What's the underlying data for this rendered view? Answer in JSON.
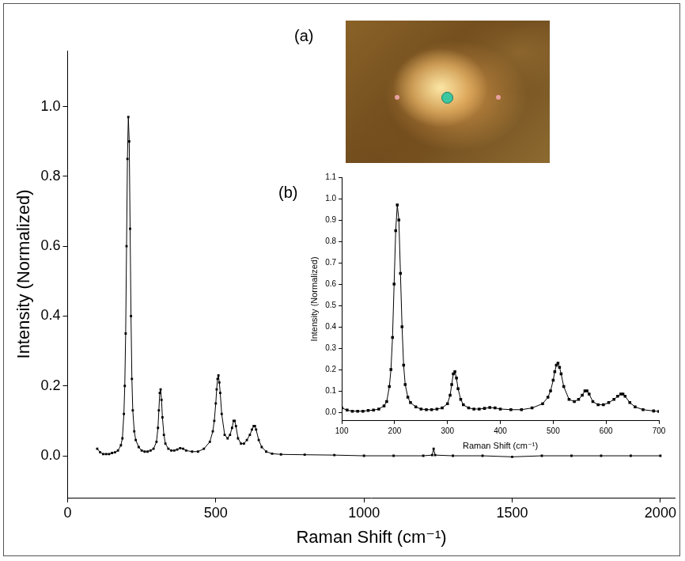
{
  "chart_data": [
    {
      "type": "line",
      "x_label": "Raman Shift (cm⁻¹)",
      "y_label": "Intensity (Normalized)",
      "annotations": [
        "(a)"
      ],
      "color": "#000000",
      "marker": "square",
      "line_style": "solid",
      "grid": false,
      "xlim": [
        0,
        2050
      ],
      "xticks": [
        0,
        500,
        1000,
        1500,
        2000
      ],
      "ylim": [
        -0.12,
        1.16
      ],
      "yticks": [
        {
          "value": 0,
          "label": "0.0"
        },
        {
          "value": 0.2,
          "label": "0.2"
        },
        {
          "value": 0.4,
          "label": "0.4"
        },
        {
          "value": 0.6,
          "label": "0.6"
        },
        {
          "value": 0.8,
          "label": "0.8"
        },
        {
          "value": 1.0,
          "label": "1.0"
        }
      ],
      "x": [
        100,
        110,
        120,
        130,
        140,
        150,
        160,
        170,
        180,
        185,
        190,
        193,
        196,
        199,
        202,
        205,
        208,
        211,
        214,
        217,
        220,
        225,
        230,
        240,
        250,
        260,
        270,
        280,
        290,
        300,
        305,
        308,
        311,
        314,
        317,
        320,
        325,
        330,
        340,
        350,
        360,
        370,
        380,
        390,
        400,
        420,
        440,
        460,
        480,
        490,
        495,
        500,
        503,
        506,
        509,
        512,
        515,
        520,
        530,
        540,
        548,
        555,
        560,
        564,
        568,
        575,
        585,
        595,
        605,
        615,
        622,
        628,
        632,
        636,
        645,
        655,
        670,
        690,
        720,
        800,
        900,
        1000,
        1100,
        1200,
        1230,
        1235,
        1240,
        1300,
        1400,
        1500,
        1600,
        1700,
        1800,
        1900,
        2000
      ],
      "values": [
        0.02,
        0.01,
        0.005,
        0.005,
        0.005,
        0.008,
        0.01,
        0.015,
        0.03,
        0.05,
        0.12,
        0.2,
        0.35,
        0.6,
        0.85,
        0.97,
        0.9,
        0.65,
        0.4,
        0.22,
        0.13,
        0.07,
        0.045,
        0.025,
        0.015,
        0.012,
        0.012,
        0.015,
        0.02,
        0.04,
        0.08,
        0.13,
        0.18,
        0.19,
        0.16,
        0.11,
        0.06,
        0.035,
        0.02,
        0.015,
        0.015,
        0.018,
        0.022,
        0.02,
        0.015,
        0.012,
        0.012,
        0.02,
        0.04,
        0.07,
        0.1,
        0.15,
        0.19,
        0.22,
        0.23,
        0.21,
        0.18,
        0.12,
        0.06,
        0.05,
        0.06,
        0.08,
        0.1,
        0.1,
        0.085,
        0.05,
        0.035,
        0.035,
        0.045,
        0.06,
        0.075,
        0.085,
        0.085,
        0.075,
        0.045,
        0.025,
        0.012,
        0.006,
        0.004,
        0.003,
        0.002,
        0.0,
        0.0,
        0.0,
        0.002,
        0.02,
        0.002,
        0.0,
        0.0,
        -0.003,
        0.0,
        0.0,
        0.0,
        0.0,
        0.0
      ]
    },
    {
      "type": "line",
      "x_label": "Raman Shift (cm⁻¹)",
      "y_label": "Intensity (Normalized)",
      "annotations": [
        "(b)"
      ],
      "color": "#000000",
      "marker": "square",
      "line_style": "solid",
      "grid": false,
      "xlim": [
        100,
        700
      ],
      "xticks": [
        100,
        200,
        300,
        400,
        500,
        600,
        700
      ],
      "ylim": [
        -0.04,
        1.1
      ],
      "yticks": [
        {
          "value": 0,
          "label": "0.0"
        },
        {
          "value": 0.1,
          "label": "0.1"
        },
        {
          "value": 0.2,
          "label": "0.2"
        },
        {
          "value": 0.3,
          "label": "0.3"
        },
        {
          "value": 0.4,
          "label": "0.4"
        },
        {
          "value": 0.5,
          "label": "0.5"
        },
        {
          "value": 0.6,
          "label": "0.6"
        },
        {
          "value": 0.7,
          "label": "0.7"
        },
        {
          "value": 0.8,
          "label": "0.8"
        },
        {
          "value": 0.9,
          "label": "0.9"
        },
        {
          "value": 1.0,
          "label": "1.0"
        },
        {
          "value": 1.1,
          "label": "1.1"
        }
      ],
      "x": [
        100,
        110,
        120,
        130,
        140,
        150,
        160,
        170,
        180,
        185,
        190,
        193,
        196,
        199,
        202,
        205,
        208,
        211,
        214,
        217,
        220,
        225,
        230,
        240,
        250,
        260,
        270,
        280,
        290,
        300,
        305,
        308,
        311,
        314,
        317,
        320,
        325,
        330,
        340,
        350,
        360,
        370,
        380,
        390,
        400,
        420,
        440,
        460,
        480,
        490,
        495,
        500,
        503,
        506,
        509,
        512,
        515,
        520,
        530,
        540,
        548,
        555,
        560,
        564,
        568,
        575,
        585,
        595,
        605,
        615,
        622,
        628,
        632,
        636,
        645,
        655,
        670,
        690,
        700
      ],
      "values": [
        0.02,
        0.01,
        0.005,
        0.005,
        0.005,
        0.008,
        0.01,
        0.015,
        0.03,
        0.05,
        0.12,
        0.2,
        0.35,
        0.6,
        0.85,
        0.97,
        0.9,
        0.65,
        0.4,
        0.22,
        0.13,
        0.07,
        0.045,
        0.025,
        0.015,
        0.012,
        0.012,
        0.015,
        0.02,
        0.04,
        0.08,
        0.13,
        0.18,
        0.19,
        0.16,
        0.11,
        0.06,
        0.035,
        0.02,
        0.015,
        0.015,
        0.018,
        0.022,
        0.02,
        0.015,
        0.012,
        0.012,
        0.02,
        0.04,
        0.07,
        0.1,
        0.15,
        0.19,
        0.22,
        0.23,
        0.21,
        0.18,
        0.12,
        0.06,
        0.05,
        0.06,
        0.08,
        0.1,
        0.1,
        0.085,
        0.05,
        0.035,
        0.035,
        0.045,
        0.06,
        0.075,
        0.085,
        0.085,
        0.075,
        0.045,
        0.025,
        0.012,
        0.006,
        0.004
      ]
    }
  ]
}
